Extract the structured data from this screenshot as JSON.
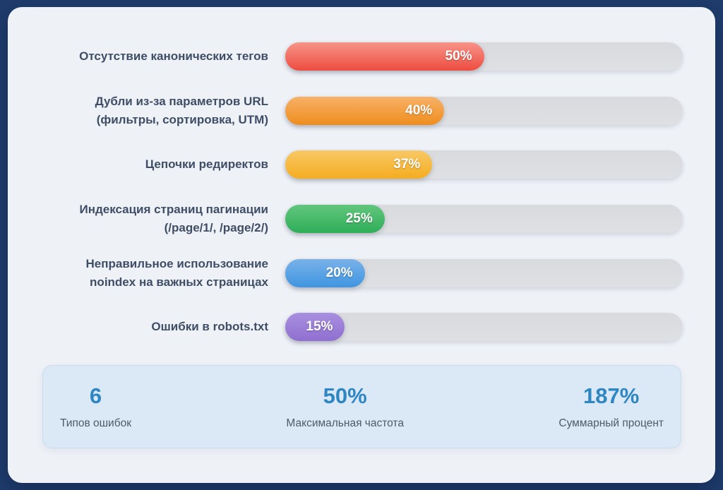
{
  "colors": {
    "page_background": "#1f3c6c",
    "card_background": "#eef1f6",
    "track_color": "#dbdcdf",
    "bar_label_color": "#3f4e66",
    "bar_value_color": "#ffffff",
    "summary_panel_background": "#dbe8f6",
    "summary_panel_border": "#c7dcee",
    "summary_value_color": "#2e86c3",
    "summary_label_color": "#4e5a68"
  },
  "chart_data": {
    "type": "bar",
    "orientation": "horizontal",
    "xlim": [
      0,
      100
    ],
    "grid": false,
    "legend": false,
    "value_suffix": "%",
    "categories": [
      "Отсутствие канонических тегов",
      "Дубли из-за параметров URL (фильтры, сортировка, UTM)",
      "Цепочки редиректов",
      "Индексация страниц пагинации (/page/1/, /page/2/)",
      "Неправильное использование noindex на важных страницах",
      "Ошибки в robots.txt"
    ],
    "values": [
      50,
      40,
      37,
      25,
      20,
      15
    ],
    "bars": [
      {
        "label_line1": "Отсутствие канонических тегов",
        "value": 50,
        "value_label": "50%",
        "color_top": "#f79489",
        "color_bottom": "#ee4c3f"
      },
      {
        "label_line1": "Дубли из-за параметров URL",
        "label_line2": "(фильтры, сортировка, UTM)",
        "value": 40,
        "value_label": "40%",
        "color_top": "#f7b167",
        "color_bottom": "#ef8d1e"
      },
      {
        "label_line1": "Цепочки редиректов",
        "value": 37,
        "value_label": "37%",
        "color_top": "#f8c865",
        "color_bottom": "#f5ad20"
      },
      {
        "label_line1": "Индексация страниц пагинации",
        "label_line2": "(/page/1/, /page/2/)",
        "value": 25,
        "value_label": "25%",
        "color_top": "#62c67d",
        "color_bottom": "#2fae58"
      },
      {
        "label_line1": "Неправильное использование",
        "label_line2": "noindex на важных страницах",
        "value": 20,
        "value_label": "20%",
        "color_top": "#79b2e9",
        "color_bottom": "#3f95e1"
      },
      {
        "label_line1": "Ошибки в robots.txt",
        "value": 15,
        "value_label": "15%",
        "color_top": "#a98fdf",
        "color_bottom": "#8f6fd0"
      }
    ]
  },
  "summary": {
    "items": [
      {
        "value": "6",
        "label": "Типов ошибок"
      },
      {
        "value": "50%",
        "label": "Максимальная частота"
      },
      {
        "value": "187%",
        "label": "Суммарный процент"
      }
    ]
  }
}
